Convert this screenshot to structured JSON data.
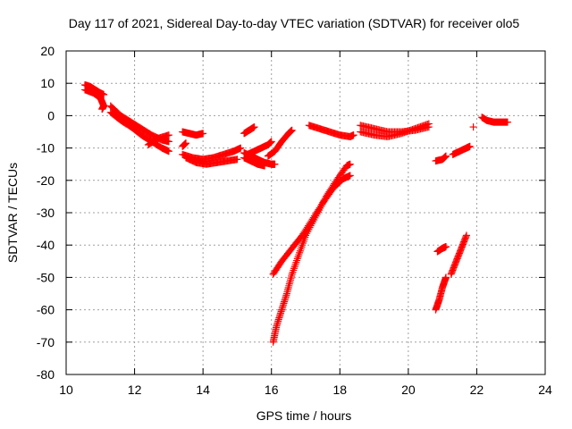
{
  "chart_data": {
    "type": "scatter",
    "title": "Day 117 of 2021, Sidereal Day-to-day VTEC variation (SDTVAR) for receiver olo5",
    "xlabel": "GPS time / hours",
    "ylabel": "SDTVAR / TECUs",
    "xlim": [
      10,
      24
    ],
    "ylim": [
      -80,
      20
    ],
    "xticks": [
      10,
      12,
      14,
      16,
      18,
      20,
      22,
      24
    ],
    "yticks": [
      20,
      10,
      0,
      -10,
      -20,
      -30,
      -40,
      -50,
      -60,
      -70,
      -80
    ],
    "grid": true,
    "marker": "+",
    "color": "#ff0000",
    "series": [
      {
        "points": [
          [
            10.55,
            9.5
          ],
          [
            10.7,
            9.0
          ],
          [
            10.85,
            8.0
          ],
          [
            11.0,
            7.0
          ],
          [
            11.1,
            6.5
          ]
        ]
      },
      {
        "points": [
          [
            10.55,
            8.0
          ],
          [
            10.8,
            7.0
          ],
          [
            11.0,
            5.5
          ],
          [
            11.1,
            3.0
          ],
          [
            11.05,
            2.0
          ]
        ]
      },
      {
        "points": [
          [
            11.3,
            3.0
          ],
          [
            11.6,
            0.0
          ],
          [
            11.9,
            -2.0
          ],
          [
            12.2,
            -4.0
          ],
          [
            12.5,
            -6.0
          ],
          [
            12.8,
            -7.5
          ],
          [
            13.0,
            -8.0
          ]
        ]
      },
      {
        "points": [
          [
            11.3,
            1.0
          ],
          [
            11.6,
            -1.5
          ],
          [
            11.9,
            -3.5
          ],
          [
            12.2,
            -6.0
          ],
          [
            12.5,
            -8.0
          ],
          [
            12.8,
            -10.0
          ],
          [
            13.0,
            -11.0
          ]
        ]
      },
      {
        "points": [
          [
            12.4,
            -9.0
          ],
          [
            12.7,
            -7.0
          ],
          [
            13.0,
            -6.0
          ]
        ]
      },
      {
        "points": [
          [
            13.4,
            -5.0
          ],
          [
            13.6,
            -5.5
          ],
          [
            13.8,
            -6.0
          ],
          [
            14.0,
            -5.5
          ]
        ]
      },
      {
        "points": [
          [
            13.4,
            -9.5
          ],
          [
            13.5,
            -8.5
          ]
        ]
      },
      {
        "points": [
          [
            13.4,
            -12.0
          ],
          [
            13.7,
            -13.0
          ],
          [
            14.0,
            -13.5
          ],
          [
            14.3,
            -13.0
          ],
          [
            14.6,
            -12.0
          ],
          [
            14.9,
            -11.0
          ],
          [
            15.1,
            -10.0
          ]
        ]
      },
      {
        "points": [
          [
            13.5,
            -13.0
          ],
          [
            13.8,
            -14.5
          ],
          [
            14.1,
            -15.0
          ],
          [
            14.4,
            -14.5
          ],
          [
            14.7,
            -14.0
          ],
          [
            15.0,
            -13.5
          ]
        ]
      },
      {
        "points": [
          [
            15.2,
            -5.5
          ],
          [
            15.35,
            -4.5
          ],
          [
            15.5,
            -3.5
          ]
        ]
      },
      {
        "points": [
          [
            15.2,
            -11.5
          ],
          [
            15.4,
            -12.5
          ],
          [
            15.6,
            -13.5
          ],
          [
            15.8,
            -14.5
          ],
          [
            16.0,
            -15.0
          ],
          [
            16.1,
            -15.0
          ]
        ]
      },
      {
        "points": [
          [
            15.2,
            -13.0
          ],
          [
            15.4,
            -14.0
          ],
          [
            15.6,
            -15.0
          ],
          [
            15.8,
            -15.5
          ]
        ]
      },
      {
        "points": [
          [
            15.3,
            -12.0
          ],
          [
            15.5,
            -11.0
          ],
          [
            15.7,
            -10.0
          ],
          [
            15.9,
            -9.0
          ],
          [
            16.0,
            -8.0
          ]
        ]
      },
      {
        "points": [
          [
            15.9,
            -12.5
          ],
          [
            16.1,
            -11.0
          ],
          [
            16.3,
            -8.0
          ],
          [
            16.5,
            -5.5
          ],
          [
            16.6,
            -4.5
          ]
        ]
      },
      {
        "points": [
          [
            17.1,
            -3.0
          ],
          [
            17.4,
            -4.0
          ],
          [
            17.7,
            -5.0
          ],
          [
            18.0,
            -6.0
          ],
          [
            18.3,
            -6.5
          ],
          [
            18.4,
            -6.0
          ]
        ]
      },
      {
        "points": [
          [
            18.6,
            -3.0
          ],
          [
            19.0,
            -4.0
          ],
          [
            19.4,
            -5.0
          ],
          [
            19.8,
            -5.0
          ],
          [
            20.2,
            -4.5
          ],
          [
            20.6,
            -3.5
          ]
        ]
      },
      {
        "points": [
          [
            18.6,
            -5.0
          ],
          [
            19.0,
            -6.0
          ],
          [
            19.4,
            -6.5
          ],
          [
            19.8,
            -5.5
          ],
          [
            20.2,
            -4.0
          ],
          [
            20.6,
            -2.5
          ]
        ]
      },
      {
        "points": [
          [
            20.8,
            -14.0
          ],
          [
            21.0,
            -13.5
          ],
          [
            21.1,
            -12.5
          ]
        ]
      },
      {
        "points": [
          [
            21.3,
            -12.0
          ],
          [
            21.5,
            -11.0
          ],
          [
            21.7,
            -10.0
          ],
          [
            21.8,
            -9.5
          ]
        ]
      },
      {
        "points": [
          [
            21.9,
            -3.5
          ]
        ]
      },
      {
        "points": [
          [
            22.15,
            -0.5
          ],
          [
            22.3,
            -1.5
          ],
          [
            22.5,
            -2.0
          ],
          [
            22.7,
            -2.0
          ],
          [
            22.9,
            -2.0
          ]
        ]
      },
      {
        "points": [
          [
            16.05,
            -49.0
          ],
          [
            16.3,
            -45.0
          ],
          [
            16.6,
            -41.0
          ],
          [
            16.9,
            -37.0
          ],
          [
            17.2,
            -32.0
          ],
          [
            17.5,
            -27.0
          ],
          [
            17.8,
            -22.5
          ],
          [
            18.1,
            -19.5
          ],
          [
            18.3,
            -18.5
          ]
        ]
      },
      {
        "points": [
          [
            16.05,
            -70.0
          ],
          [
            16.15,
            -65.0
          ],
          [
            16.3,
            -60.0
          ],
          [
            16.45,
            -55.0
          ],
          [
            16.6,
            -49.0
          ],
          [
            16.8,
            -43.0
          ],
          [
            17.0,
            -37.0
          ],
          [
            17.3,
            -31.0
          ],
          [
            17.6,
            -25.0
          ],
          [
            17.9,
            -20.0
          ],
          [
            18.2,
            -15.5
          ],
          [
            18.3,
            -15.0
          ]
        ]
      },
      {
        "points": [
          [
            20.8,
            -60.0
          ],
          [
            20.9,
            -57.0
          ],
          [
            21.0,
            -53.0
          ],
          [
            21.1,
            -50.0
          ]
        ]
      },
      {
        "points": [
          [
            20.85,
            -42.0
          ],
          [
            21.0,
            -41.0
          ],
          [
            21.1,
            -40.5
          ]
        ]
      },
      {
        "points": [
          [
            21.25,
            -49.0
          ],
          [
            21.4,
            -45.0
          ],
          [
            21.55,
            -41.0
          ],
          [
            21.7,
            -37.0
          ]
        ]
      }
    ]
  }
}
